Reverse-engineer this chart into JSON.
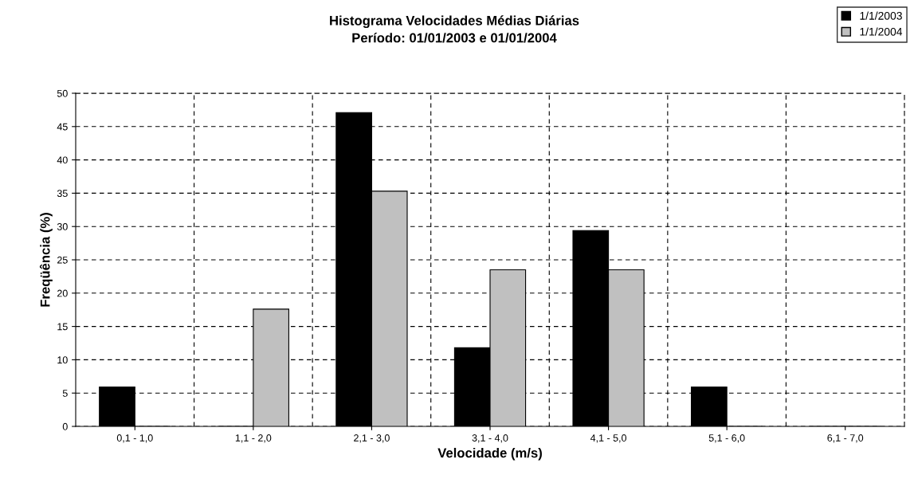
{
  "chart_data": {
    "type": "bar",
    "title": "Histograma Velocidades Médias Diárias\nPeríodo: 01/01/2003 e 01/01/2004",
    "xlabel": "Velocidade (m/s)",
    "ylabel": "Freqüência (%)",
    "categories": [
      "0,1 - 1,0",
      "1,1 - 2,0",
      "2,1 - 3,0",
      "3,1 - 4,0",
      "4,1 - 5,0",
      "5,1 - 6,0",
      "6,1 - 7,0"
    ],
    "series": [
      {
        "name": "1/1/2003",
        "color": "#000000",
        "values": [
          5.9,
          0,
          47.1,
          11.8,
          29.4,
          5.9,
          0
        ]
      },
      {
        "name": "1/1/2004",
        "color": "#c0c0c0",
        "values": [
          0,
          17.6,
          35.3,
          23.5,
          23.5,
          0,
          0
        ]
      }
    ],
    "ylim": [
      0,
      50
    ],
    "yticks": [
      0,
      5,
      10,
      15,
      20,
      25,
      30,
      35,
      40,
      45,
      50
    ],
    "grid": true,
    "legend": "top right"
  }
}
